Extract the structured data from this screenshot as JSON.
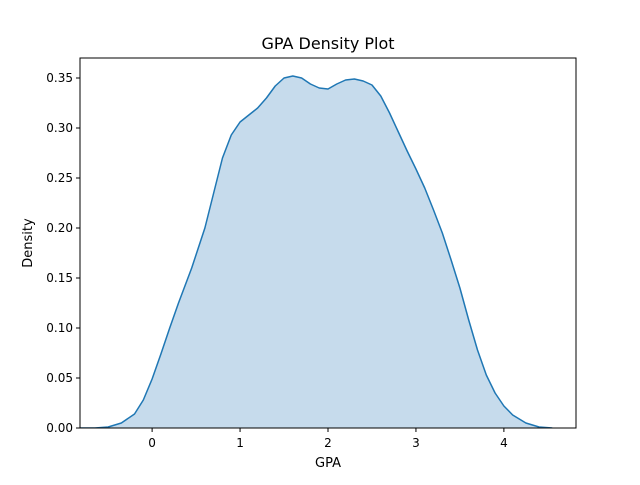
{
  "chart_data": {
    "type": "area",
    "title": "GPA Density Plot",
    "xlabel": "GPA",
    "ylabel": "Density",
    "xlim": [
      -0.82,
      4.82
    ],
    "ylim": [
      0.0,
      0.37
    ],
    "xticks": [
      0,
      1,
      2,
      3,
      4
    ],
    "yticks": [
      "0.00",
      "0.05",
      "0.10",
      "0.15",
      "0.20",
      "0.25",
      "0.30",
      "0.35"
    ],
    "grid": false,
    "legend": "none",
    "line_color": "#1f77b4",
    "fill_color": "#c6dbec",
    "series": [
      {
        "x": [
          -0.85,
          -0.65,
          -0.5,
          -0.35,
          -0.2,
          -0.1,
          0.0,
          0.1,
          0.2,
          0.3,
          0.45,
          0.6,
          0.7,
          0.8,
          0.9,
          1.0,
          1.1,
          1.2,
          1.3,
          1.4,
          1.5,
          1.6,
          1.7,
          1.8,
          1.9,
          2.0,
          2.1,
          2.2,
          2.3,
          2.4,
          2.5,
          2.6,
          2.7,
          2.8,
          2.9,
          3.0,
          3.1,
          3.2,
          3.3,
          3.4,
          3.5,
          3.6,
          3.7,
          3.8,
          3.9,
          4.0,
          4.1,
          4.25,
          4.4,
          4.55
        ],
        "y": [
          0.0,
          0.0,
          0.001,
          0.005,
          0.014,
          0.028,
          0.049,
          0.074,
          0.1,
          0.125,
          0.16,
          0.2,
          0.235,
          0.27,
          0.293,
          0.306,
          0.313,
          0.32,
          0.33,
          0.342,
          0.35,
          0.352,
          0.35,
          0.344,
          0.34,
          0.339,
          0.344,
          0.348,
          0.349,
          0.347,
          0.343,
          0.332,
          0.315,
          0.296,
          0.277,
          0.259,
          0.24,
          0.218,
          0.195,
          0.168,
          0.14,
          0.108,
          0.078,
          0.053,
          0.035,
          0.022,
          0.013,
          0.005,
          0.001,
          0.0
        ]
      }
    ]
  }
}
